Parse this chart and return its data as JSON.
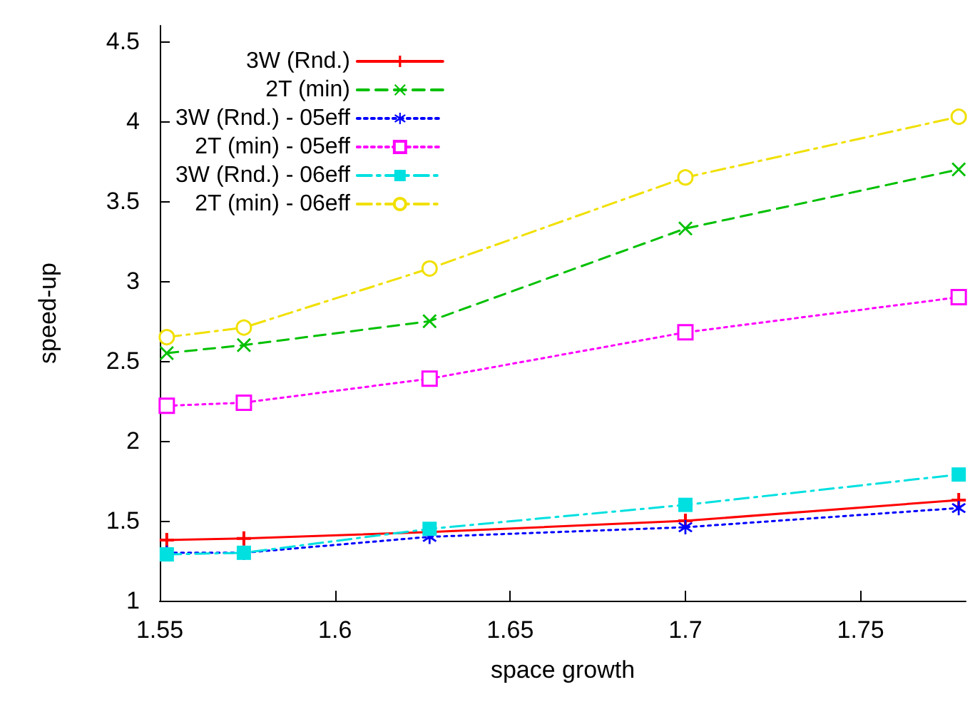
{
  "chart_data": {
    "type": "line",
    "xlabel": "space growth",
    "ylabel": "speed-up",
    "x": [
      1.552,
      1.574,
      1.627,
      1.7,
      1.778
    ],
    "xlim": [
      1.55,
      1.78
    ],
    "xticks": [
      1.55,
      1.6,
      1.65,
      1.7,
      1.75
    ],
    "ylim": [
      1,
      4.6
    ],
    "yticks": [
      1,
      1.5,
      2,
      2.5,
      3,
      3.5,
      4,
      4.5
    ],
    "grid": false,
    "legend": "top left",
    "series": [
      {
        "name": "3W (Rnd.)",
        "color": "#ff0000",
        "marker": "cross",
        "line_style": "solid",
        "values": [
          1.38,
          1.39,
          1.43,
          1.5,
          1.63
        ]
      },
      {
        "name": "2T (min)",
        "color": "#00c000",
        "marker": "x",
        "line_style": "dashed",
        "values": [
          2.55,
          2.6,
          2.75,
          3.33,
          3.7
        ]
      },
      {
        "name": "3W (Rnd.) - 05eff",
        "color": "#0000ff",
        "marker": "star",
        "line_style": "dotted",
        "values": [
          1.3,
          1.3,
          1.4,
          1.46,
          1.58
        ]
      },
      {
        "name": "2T (min) - 05eff",
        "color": "#ff00ff",
        "marker": "square-open",
        "line_style": "dotted",
        "values": [
          2.22,
          2.24,
          2.39,
          2.68,
          2.9
        ]
      },
      {
        "name": "3W (Rnd.) - 06eff",
        "color": "#00e0e0",
        "marker": "square",
        "line_style": "dashdot",
        "values": [
          1.29,
          1.3,
          1.45,
          1.6,
          1.79
        ]
      },
      {
        "name": "2T (min) - 06eff",
        "color": "#f0e000",
        "marker": "circle-open",
        "line_style": "dashdot",
        "values": [
          2.65,
          2.71,
          3.08,
          3.65,
          4.03
        ]
      }
    ]
  }
}
